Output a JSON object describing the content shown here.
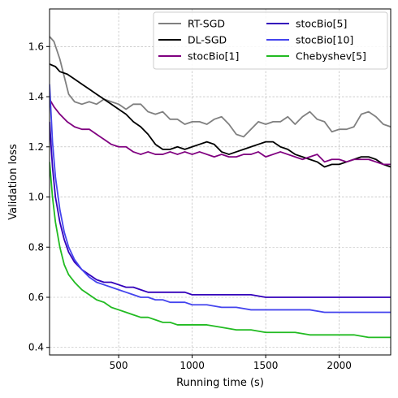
{
  "chart_data": {
    "type": "line",
    "title": "",
    "xlabel": "Running time (s)",
    "ylabel": "Validation loss",
    "xlim": [
      30,
      2350
    ],
    "ylim": [
      0.37,
      1.75
    ],
    "xticks": [
      500,
      1000,
      1500,
      2000
    ],
    "yticks": [
      0.4,
      0.6,
      0.8,
      1.0,
      1.2,
      1.4,
      1.6
    ],
    "x_tick_labels": [
      "500",
      "1000",
      "1500",
      "2000"
    ],
    "y_tick_labels": [
      "0.4",
      "0.6",
      "0.8",
      "1.0",
      "1.2",
      "1.4",
      "1.6"
    ],
    "grid": true,
    "legend_position": "top-right",
    "legend_columns": 2,
    "series": [
      {
        "name": "RT-SGD",
        "color": "#808080",
        "points": [
          [
            30,
            1.64
          ],
          [
            60,
            1.62
          ],
          [
            100,
            1.55
          ],
          [
            130,
            1.48
          ],
          [
            160,
            1.41
          ],
          [
            200,
            1.38
          ],
          [
            250,
            1.37
          ],
          [
            300,
            1.38
          ],
          [
            350,
            1.37
          ],
          [
            400,
            1.39
          ],
          [
            450,
            1.38
          ],
          [
            500,
            1.37
          ],
          [
            550,
            1.35
          ],
          [
            600,
            1.37
          ],
          [
            650,
            1.37
          ],
          [
            700,
            1.34
          ],
          [
            750,
            1.33
          ],
          [
            800,
            1.34
          ],
          [
            850,
            1.31
          ],
          [
            900,
            1.31
          ],
          [
            950,
            1.29
          ],
          [
            1000,
            1.3
          ],
          [
            1050,
            1.3
          ],
          [
            1100,
            1.29
          ],
          [
            1150,
            1.31
          ],
          [
            1200,
            1.32
          ],
          [
            1250,
            1.29
          ],
          [
            1300,
            1.25
          ],
          [
            1350,
            1.24
          ],
          [
            1400,
            1.27
          ],
          [
            1450,
            1.3
          ],
          [
            1500,
            1.29
          ],
          [
            1550,
            1.3
          ],
          [
            1600,
            1.3
          ],
          [
            1650,
            1.32
          ],
          [
            1700,
            1.29
          ],
          [
            1750,
            1.32
          ],
          [
            1800,
            1.34
          ],
          [
            1850,
            1.31
          ],
          [
            1900,
            1.3
          ],
          [
            1950,
            1.26
          ],
          [
            2000,
            1.27
          ],
          [
            2050,
            1.27
          ],
          [
            2100,
            1.28
          ],
          [
            2150,
            1.33
          ],
          [
            2200,
            1.34
          ],
          [
            2250,
            1.32
          ],
          [
            2300,
            1.29
          ],
          [
            2350,
            1.28
          ]
        ]
      },
      {
        "name": "DL-SGD",
        "color": "#000000",
        "points": [
          [
            30,
            1.53
          ],
          [
            70,
            1.52
          ],
          [
            100,
            1.5
          ],
          [
            150,
            1.49
          ],
          [
            200,
            1.47
          ],
          [
            250,
            1.45
          ],
          [
            300,
            1.43
          ],
          [
            350,
            1.41
          ],
          [
            400,
            1.39
          ],
          [
            450,
            1.37
          ],
          [
            500,
            1.35
          ],
          [
            550,
            1.33
          ],
          [
            600,
            1.3
          ],
          [
            650,
            1.28
          ],
          [
            700,
            1.25
          ],
          [
            750,
            1.21
          ],
          [
            800,
            1.19
          ],
          [
            850,
            1.19
          ],
          [
            900,
            1.2
          ],
          [
            950,
            1.19
          ],
          [
            1000,
            1.2
          ],
          [
            1050,
            1.21
          ],
          [
            1100,
            1.22
          ],
          [
            1150,
            1.21
          ],
          [
            1200,
            1.18
          ],
          [
            1250,
            1.17
          ],
          [
            1300,
            1.18
          ],
          [
            1350,
            1.19
          ],
          [
            1400,
            1.2
          ],
          [
            1450,
            1.21
          ],
          [
            1500,
            1.22
          ],
          [
            1550,
            1.22
          ],
          [
            1600,
            1.2
          ],
          [
            1650,
            1.19
          ],
          [
            1700,
            1.17
          ],
          [
            1750,
            1.16
          ],
          [
            1800,
            1.15
          ],
          [
            1850,
            1.14
          ],
          [
            1900,
            1.12
          ],
          [
            1950,
            1.13
          ],
          [
            2000,
            1.13
          ],
          [
            2050,
            1.14
          ],
          [
            2100,
            1.15
          ],
          [
            2150,
            1.16
          ],
          [
            2200,
            1.16
          ],
          [
            2250,
            1.15
          ],
          [
            2300,
            1.13
          ],
          [
            2350,
            1.12
          ]
        ]
      },
      {
        "name": "stocBio[1]",
        "color": "#800080",
        "points": [
          [
            30,
            1.39
          ],
          [
            60,
            1.36
          ],
          [
            100,
            1.33
          ],
          [
            150,
            1.3
          ],
          [
            200,
            1.28
          ],
          [
            250,
            1.27
          ],
          [
            300,
            1.27
          ],
          [
            350,
            1.25
          ],
          [
            400,
            1.23
          ],
          [
            450,
            1.21
          ],
          [
            500,
            1.2
          ],
          [
            550,
            1.2
          ],
          [
            600,
            1.18
          ],
          [
            650,
            1.17
          ],
          [
            700,
            1.18
          ],
          [
            750,
            1.17
          ],
          [
            800,
            1.17
          ],
          [
            850,
            1.18
          ],
          [
            900,
            1.17
          ],
          [
            950,
            1.18
          ],
          [
            1000,
            1.17
          ],
          [
            1050,
            1.18
          ],
          [
            1100,
            1.17
          ],
          [
            1150,
            1.16
          ],
          [
            1200,
            1.17
          ],
          [
            1250,
            1.16
          ],
          [
            1300,
            1.16
          ],
          [
            1350,
            1.17
          ],
          [
            1400,
            1.17
          ],
          [
            1450,
            1.18
          ],
          [
            1500,
            1.16
          ],
          [
            1550,
            1.17
          ],
          [
            1600,
            1.18
          ],
          [
            1650,
            1.17
          ],
          [
            1700,
            1.16
          ],
          [
            1750,
            1.15
          ],
          [
            1800,
            1.16
          ],
          [
            1850,
            1.17
          ],
          [
            1900,
            1.14
          ],
          [
            1950,
            1.15
          ],
          [
            2000,
            1.15
          ],
          [
            2050,
            1.14
          ],
          [
            2100,
            1.15
          ],
          [
            2150,
            1.15
          ],
          [
            2200,
            1.15
          ],
          [
            2250,
            1.14
          ],
          [
            2300,
            1.13
          ],
          [
            2350,
            1.13
          ]
        ]
      },
      {
        "name": "stocBio[5]",
        "color": "#3300bb",
        "points": [
          [
            30,
            1.3
          ],
          [
            50,
            1.12
          ],
          [
            70,
            1.0
          ],
          [
            100,
            0.9
          ],
          [
            130,
            0.83
          ],
          [
            160,
            0.78
          ],
          [
            200,
            0.74
          ],
          [
            250,
            0.71
          ],
          [
            300,
            0.69
          ],
          [
            350,
            0.67
          ],
          [
            400,
            0.66
          ],
          [
            450,
            0.66
          ],
          [
            500,
            0.65
          ],
          [
            550,
            0.64
          ],
          [
            600,
            0.64
          ],
          [
            650,
            0.63
          ],
          [
            700,
            0.62
          ],
          [
            750,
            0.62
          ],
          [
            800,
            0.62
          ],
          [
            850,
            0.62
          ],
          [
            900,
            0.62
          ],
          [
            950,
            0.62
          ],
          [
            1000,
            0.61
          ],
          [
            1100,
            0.61
          ],
          [
            1200,
            0.61
          ],
          [
            1300,
            0.61
          ],
          [
            1400,
            0.61
          ],
          [
            1500,
            0.6
          ],
          [
            1600,
            0.6
          ],
          [
            1700,
            0.6
          ],
          [
            1800,
            0.6
          ],
          [
            1900,
            0.6
          ],
          [
            2000,
            0.6
          ],
          [
            2100,
            0.6
          ],
          [
            2200,
            0.6
          ],
          [
            2300,
            0.6
          ],
          [
            2350,
            0.6
          ]
        ]
      },
      {
        "name": "stocBio[10]",
        "color": "#4444ee",
        "points": [
          [
            30,
            1.45
          ],
          [
            50,
            1.22
          ],
          [
            70,
            1.08
          ],
          [
            100,
            0.95
          ],
          [
            130,
            0.86
          ],
          [
            160,
            0.8
          ],
          [
            200,
            0.75
          ],
          [
            250,
            0.71
          ],
          [
            300,
            0.68
          ],
          [
            350,
            0.66
          ],
          [
            400,
            0.65
          ],
          [
            450,
            0.64
          ],
          [
            500,
            0.63
          ],
          [
            550,
            0.62
          ],
          [
            600,
            0.61
          ],
          [
            650,
            0.6
          ],
          [
            700,
            0.6
          ],
          [
            750,
            0.59
          ],
          [
            800,
            0.59
          ],
          [
            850,
            0.58
          ],
          [
            900,
            0.58
          ],
          [
            950,
            0.58
          ],
          [
            1000,
            0.57
          ],
          [
            1100,
            0.57
          ],
          [
            1200,
            0.56
          ],
          [
            1300,
            0.56
          ],
          [
            1400,
            0.55
          ],
          [
            1500,
            0.55
          ],
          [
            1600,
            0.55
          ],
          [
            1700,
            0.55
          ],
          [
            1800,
            0.55
          ],
          [
            1900,
            0.54
          ],
          [
            2000,
            0.54
          ],
          [
            2100,
            0.54
          ],
          [
            2200,
            0.54
          ],
          [
            2300,
            0.54
          ],
          [
            2350,
            0.54
          ]
        ]
      },
      {
        "name": "Chebyshev[5]",
        "color": "#22bb22",
        "points": [
          [
            30,
            1.14
          ],
          [
            50,
            1.0
          ],
          [
            70,
            0.9
          ],
          [
            100,
            0.8
          ],
          [
            130,
            0.73
          ],
          [
            160,
            0.69
          ],
          [
            200,
            0.66
          ],
          [
            250,
            0.63
          ],
          [
            300,
            0.61
          ],
          [
            350,
            0.59
          ],
          [
            400,
            0.58
          ],
          [
            450,
            0.56
          ],
          [
            500,
            0.55
          ],
          [
            550,
            0.54
          ],
          [
            600,
            0.53
          ],
          [
            650,
            0.52
          ],
          [
            700,
            0.52
          ],
          [
            750,
            0.51
          ],
          [
            800,
            0.5
          ],
          [
            850,
            0.5
          ],
          [
            900,
            0.49
          ],
          [
            950,
            0.49
          ],
          [
            1000,
            0.49
          ],
          [
            1100,
            0.49
          ],
          [
            1200,
            0.48
          ],
          [
            1300,
            0.47
          ],
          [
            1400,
            0.47
          ],
          [
            1500,
            0.46
          ],
          [
            1600,
            0.46
          ],
          [
            1700,
            0.46
          ],
          [
            1800,
            0.45
          ],
          [
            1900,
            0.45
          ],
          [
            2000,
            0.45
          ],
          [
            2100,
            0.45
          ],
          [
            2200,
            0.44
          ],
          [
            2300,
            0.44
          ],
          [
            2350,
            0.44
          ]
        ]
      }
    ]
  }
}
